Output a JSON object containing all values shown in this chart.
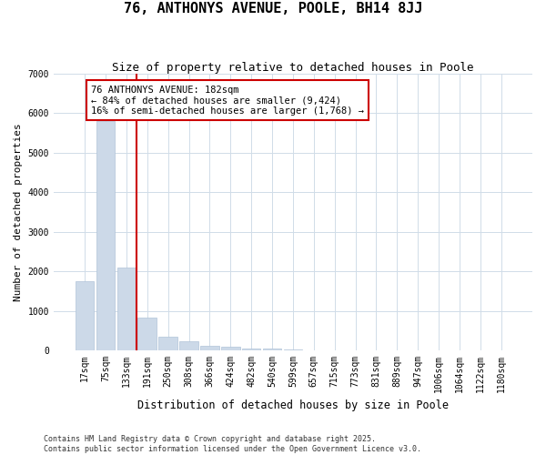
{
  "title": "76, ANTHONYS AVENUE, POOLE, BH14 8JJ",
  "subtitle": "Size of property relative to detached houses in Poole",
  "xlabel": "Distribution of detached houses by size in Poole",
  "ylabel": "Number of detached properties",
  "bar_color": "#ccd9e8",
  "bar_edge_color": "#b0c4d8",
  "background_color": "#ffffff",
  "plot_bg_color": "#ffffff",
  "grid_color": "#d0dce8",
  "categories": [
    "17sqm",
    "75sqm",
    "133sqm",
    "191sqm",
    "250sqm",
    "308sqm",
    "366sqm",
    "424sqm",
    "482sqm",
    "540sqm",
    "599sqm",
    "657sqm",
    "715sqm",
    "773sqm",
    "831sqm",
    "889sqm",
    "947sqm",
    "1006sqm",
    "1064sqm",
    "1122sqm",
    "1180sqm"
  ],
  "values": [
    1750,
    5800,
    2100,
    820,
    360,
    230,
    120,
    90,
    55,
    45,
    25,
    10,
    5,
    2,
    1,
    1,
    0,
    0,
    0,
    0,
    0
  ],
  "property_label": "76 ANTHONYS AVENUE: 182sqm",
  "annotation_line1": "← 84% of detached houses are smaller (9,424)",
  "annotation_line2": "16% of semi-detached houses are larger (1,768) →",
  "vline_x": 2.5,
  "ylim": [
    0,
    7000
  ],
  "yticks": [
    0,
    1000,
    2000,
    3000,
    4000,
    5000,
    6000,
    7000
  ],
  "annotation_box_edgecolor": "#cc0000",
  "vline_color": "#cc0000",
  "footer_line1": "Contains HM Land Registry data © Crown copyright and database right 2025.",
  "footer_line2": "Contains public sector information licensed under the Open Government Licence v3.0.",
  "title_fontsize": 11,
  "subtitle_fontsize": 9,
  "ylabel_fontsize": 8,
  "xlabel_fontsize": 8.5,
  "tick_fontsize": 7,
  "annot_fontsize": 7.5,
  "footer_fontsize": 6
}
